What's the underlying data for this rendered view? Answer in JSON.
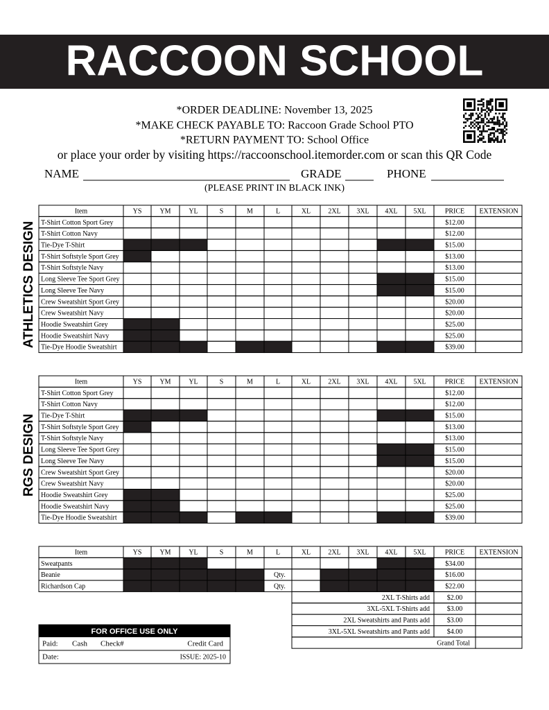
{
  "header": {
    "title": "RACCOON SCHOOL"
  },
  "info": {
    "lines": [
      "*ORDER DEADLINE: November 13, 2025",
      "*MAKE CHECK PAYABLE TO: Raccoon Grade School PTO",
      "*RETURN PAYMENT TO: School Office",
      "or place your order by visiting https://raccoonschool.itemorder.com or scan this QR Code"
    ]
  },
  "fields": {
    "name": "NAME",
    "grade": "GRADE",
    "phone": "PHONE",
    "note": "(PLEASE PRINT IN BLACK INK)"
  },
  "columns": [
    "Item",
    "YS",
    "YM",
    "YL",
    "S",
    "M",
    "L",
    "XL",
    "2XL",
    "3XL",
    "4XL",
    "5XL",
    "PRICE",
    "EXTENSION"
  ],
  "sections": [
    {
      "label": "ATHLETICS DESIGN",
      "rows": [
        {
          "item": "T-Shirt Cotton Sport Grey",
          "price": "$12.00"
        },
        {
          "item": "T-Shirt Cotton Navy",
          "price": "$12.00"
        },
        {
          "item": "Tie-Dye T-Shirt",
          "price": "$15.00"
        },
        {
          "item": "T-Shirt Softstyle Sport Grey",
          "price": "$13.00"
        },
        {
          "item": "T-Shirt Softstyle Navy",
          "price": "$13.00"
        },
        {
          "item": "Long Sleeve Tee Sport Grey",
          "price": "$15.00"
        },
        {
          "item": "Long Sleeve Tee Navy",
          "price": "$15.00"
        },
        {
          "item": "Crew Sweatshirt Sport Grey",
          "price": "$20.00"
        },
        {
          "item": "Crew Sweatshirt Navy",
          "price": "$20.00"
        },
        {
          "item": "Hoodie Sweatshirt Grey",
          "price": "$25.00"
        },
        {
          "item": "Hoodie Sweatshirt Navy",
          "price": "$25.00"
        },
        {
          "item": "Tie-Dye Hoodie Sweatshirt",
          "price": "$39.00"
        }
      ]
    },
    {
      "label": "RGS DESIGN",
      "rows": [
        {
          "item": "T-Shirt Cotton Sport Grey",
          "price": "$12.00"
        },
        {
          "item": "T-Shirt Cotton Navy",
          "price": "$12.00"
        },
        {
          "item": "Tie-Dye T-Shirt",
          "price": "$15.00"
        },
        {
          "item": "T-Shirt Softstyle Sport Grey",
          "price": "$13.00"
        },
        {
          "item": "T-Shirt Softstyle Navy",
          "price": "$13.00"
        },
        {
          "item": "Long Sleeve Tee Sport Grey",
          "price": "$15.00"
        },
        {
          "item": "Long Sleeve Tee Navy",
          "price": "$15.00"
        },
        {
          "item": "Crew Sweatshirt Sport Grey",
          "price": "$20.00"
        },
        {
          "item": "Crew Sweatshirt Navy",
          "price": "$20.00"
        },
        {
          "item": "Hoodie Sweatshirt Grey",
          "price": "$25.00"
        },
        {
          "item": "Hoodie Sweatshirt Navy",
          "price": "$25.00"
        },
        {
          "item": "Tie-Dye Hoodie Sweatshirt",
          "price": "$39.00"
        }
      ]
    },
    {
      "rows": [
        {
          "item": "Sweatpants",
          "price": "$34.00"
        },
        {
          "item": "Beanie",
          "price": "$16.00",
          "qty": "Qty."
        },
        {
          "item": "Richardson Cap",
          "price": "$22.00",
          "qty": "Qty."
        }
      ]
    }
  ],
  "addons": [
    {
      "label": "2XL T-Shirts add",
      "price": "$2.00"
    },
    {
      "label": "3XL-5XL T-Shirts add",
      "price": "$3.00"
    },
    {
      "label": "2XL Sweatshirts and Pants add",
      "price": "$3.00"
    },
    {
      "label": "3XL-5XL Sweatshirts and Pants add",
      "price": "$4.00"
    }
  ],
  "grand_total": "Grand Total",
  "office": {
    "title": "FOR OFFICE USE ONLY",
    "paid": "Paid:",
    "cash": "Cash",
    "check": "Check#",
    "credit": "Credit Card",
    "date": "Date:",
    "issue": "ISSUE: 2025-10"
  }
}
